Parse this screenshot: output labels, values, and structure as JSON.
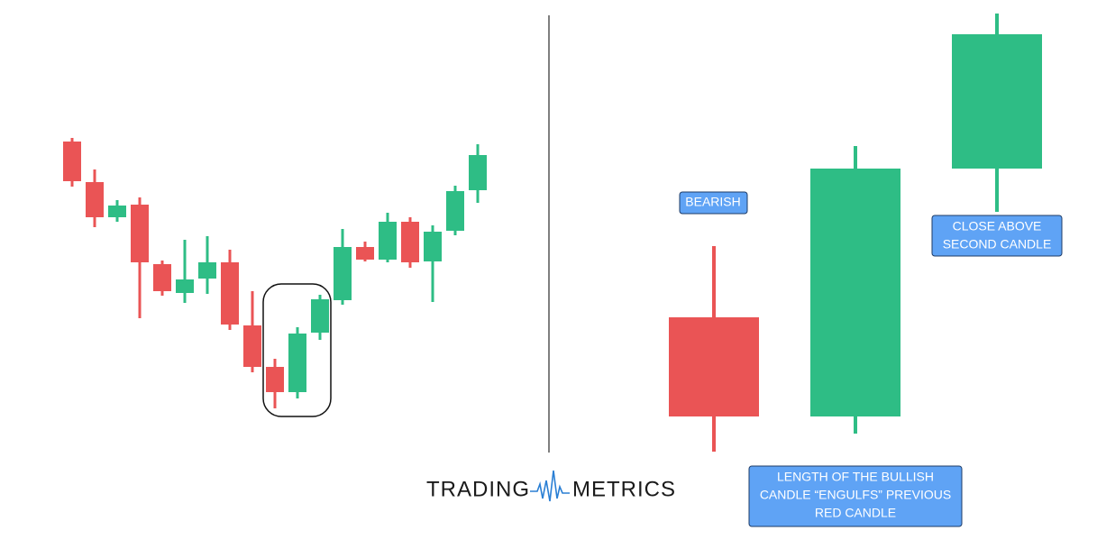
{
  "labels": {
    "bearish": [
      "BEARISH"
    ],
    "close_above": [
      "CLOSE ABOVE",
      "SECOND CANDLE"
    ],
    "engulfs": [
      "LENGTH OF THE BULLISH",
      "CANDLE “ENGULFS” PREVIOUS",
      "RED CANDLE"
    ]
  },
  "logo": {
    "left": "TRADING",
    "right": "METRICS"
  }
}
